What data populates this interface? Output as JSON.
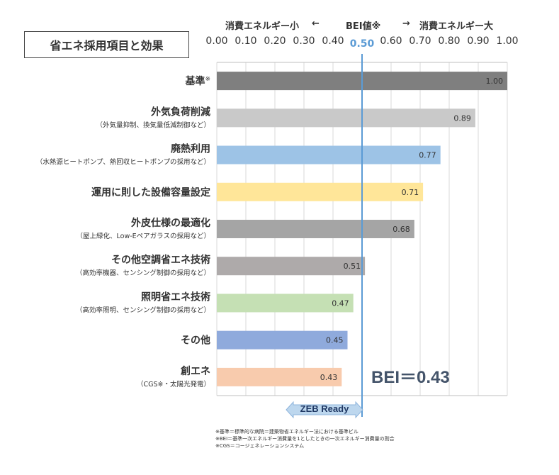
{
  "title": "省エネ採用項目と効果",
  "header": {
    "left_label": "消費エネルギー小",
    "left_arrow": "←",
    "center_label": "BEI値※",
    "right_arrow": "→",
    "right_label": "消費エネルギー大"
  },
  "colors": {
    "bei_line": "#5b9bd5",
    "bei_big_text": "#44546a"
  },
  "chart_data": {
    "type": "bar",
    "orientation": "horizontal",
    "xlim": [
      0,
      1.0
    ],
    "xticks": [
      "0.00",
      "0.10",
      "0.20",
      "0.30",
      "0.40",
      "0.50",
      "0.60",
      "0.70",
      "0.80",
      "0.90",
      "1.00"
    ],
    "highlight_tick": "0.50",
    "highlight_value": 0.5,
    "grid": true,
    "categories": [
      {
        "label": "基準",
        "sup": "※",
        "sub": "",
        "value": 1.0,
        "value_label": "1.00",
        "color": "#7f7f7f"
      },
      {
        "label": "外気負荷削減",
        "sup": "",
        "sub": "（外気量抑制、換気量低減制御など）",
        "value": 0.89,
        "value_label": "0.89",
        "color": "#c9c9c9"
      },
      {
        "label": "廃熱利用",
        "sup": "",
        "sub": "（水熱源ヒートポンプ、熱回収ヒートポンプの採用など）",
        "value": 0.77,
        "value_label": "0.77",
        "color": "#9dc3e6"
      },
      {
        "label": "運用に則した設備容量設定",
        "sup": "",
        "sub": "",
        "value": 0.71,
        "value_label": "0.71",
        "color": "#ffe699"
      },
      {
        "label": "外皮仕様の最適化",
        "sup": "",
        "sub": "（屋上緑化、Low-Eペアガラスの採用など）",
        "value": 0.68,
        "value_label": "0.68",
        "color": "#a5a5a5"
      },
      {
        "label": "その他空調省エネ技術",
        "sup": "",
        "sub": "（高効率機器、センシング制御の採用など）",
        "value": 0.51,
        "value_label": "0.51",
        "color": "#aeaaaa"
      },
      {
        "label": "照明省エネ技術",
        "sup": "",
        "sub": "（高効率照明、センシング制御の採用など）",
        "value": 0.47,
        "value_label": "0.47",
        "color": "#c5e0b4"
      },
      {
        "label": "その他",
        "sup": "",
        "sub": "",
        "value": 0.45,
        "value_label": "0.45",
        "color": "#8faadc"
      },
      {
        "label": "創エネ",
        "sup": "",
        "sub": "（CGS※・太陽光発電）",
        "value": 0.43,
        "value_label": "0.43",
        "color": "#f8cbad"
      }
    ]
  },
  "bei_result": "BEI＝0.43",
  "zeb_label": "ZEB Ready",
  "notes": [
    "※基準＝標準的な病院＝建築物省エネルギー法における基準ビル",
    "※BEI＝基準一次エネルギー消費量を1としたときの一次エネルギー消費量の割合",
    "※CGS＝コージェネレーションシステム"
  ]
}
